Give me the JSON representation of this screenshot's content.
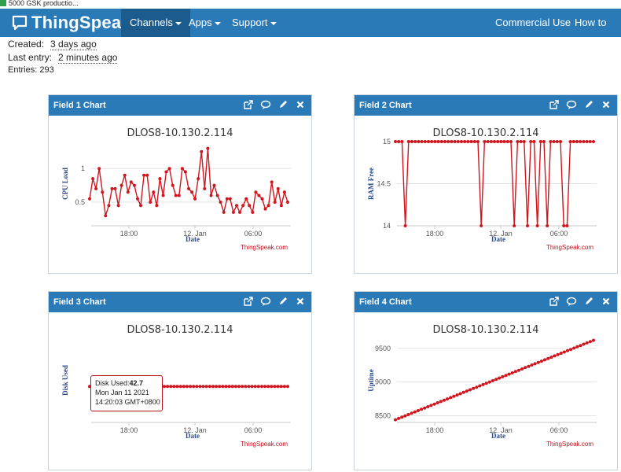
{
  "browser_tab": {
    "title": "5000 GSK productio..."
  },
  "navbar": {
    "brand": "ThingSpeak",
    "trademark": "™",
    "items": [
      {
        "label": "Channels"
      },
      {
        "label": "Apps"
      },
      {
        "label": "Support"
      }
    ],
    "right_items": [
      {
        "label": "Commercial Use"
      },
      {
        "label": "How to Buy"
      }
    ]
  },
  "channel_meta": {
    "created_label": "Created:",
    "created_value": "3 days ago",
    "last_entry_label": "Last entry:",
    "last_entry_value": "2 minutes ago",
    "entries_label": "Entries:",
    "entries_value": "293"
  },
  "colors": {
    "accent": "#2b7ab8",
    "series": "#d0161e",
    "credit": "#c0101a"
  },
  "panels": [
    {
      "title": "Field 1 Chart"
    },
    {
      "title": "Field 2 Chart"
    },
    {
      "title": "Field 3 Chart"
    },
    {
      "title": "Field 4 Chart"
    }
  ],
  "tooltip": {
    "label": "Disk Used:",
    "value": "42.7",
    "line2": "Mon Jan 11 2021",
    "line3": "14:20:03 GMT+0800"
  },
  "chart_data": [
    {
      "type": "line",
      "title": "DLOS8-10.130.2.114",
      "xlabel": "Date",
      "ylabel": "CPU Load",
      "x_ticks": [
        "18:00",
        "12. Jan",
        "06:00"
      ],
      "y_ticks": [
        0.5,
        1
      ],
      "ylim": [
        0.15,
        1.4
      ],
      "credit": "ThingSpeak.com",
      "values": [
        0.55,
        0.85,
        0.7,
        1.0,
        0.65,
        0.3,
        0.45,
        0.7,
        0.7,
        0.45,
        0.75,
        0.9,
        0.65,
        0.8,
        0.75,
        0.55,
        0.45,
        0.9,
        0.9,
        0.5,
        0.65,
        0.45,
        0.85,
        0.6,
        0.95,
        1.0,
        0.75,
        0.6,
        0.6,
        1.0,
        0.95,
        0.7,
        0.65,
        0.55,
        0.85,
        1.25,
        0.7,
        1.3,
        0.6,
        0.75,
        0.6,
        0.5,
        0.35,
        0.55,
        0.55,
        0.35,
        0.45,
        0.35,
        0.45,
        0.55,
        0.45,
        0.35,
        0.65,
        0.6,
        0.55,
        0.4,
        0.45,
        0.8,
        0.5,
        0.7,
        0.45,
        0.65,
        0.5
      ]
    },
    {
      "type": "line",
      "title": "DLOS8-10.130.2.114",
      "xlabel": "Date",
      "ylabel": "RAM Free",
      "x_ticks": [
        "18:00",
        "12. Jan",
        "06:00"
      ],
      "y_ticks": [
        14,
        14.5,
        15
      ],
      "ylim": [
        14,
        15
      ],
      "credit": "ThingSpeak.com",
      "values": [
        15,
        15,
        15,
        14,
        15,
        15,
        15,
        15,
        15,
        15,
        15,
        15,
        15,
        15,
        15,
        15,
        15,
        15,
        15,
        15,
        15,
        15,
        15,
        15,
        15,
        15,
        14,
        15,
        15,
        15,
        15,
        15,
        15,
        15,
        15,
        15,
        14,
        15,
        15,
        15,
        14,
        15,
        15,
        14,
        15,
        15,
        14,
        15,
        15,
        15,
        15,
        14,
        14,
        15,
        15,
        15,
        15,
        15,
        15,
        15,
        15
      ]
    },
    {
      "type": "line",
      "title": "DLOS8-10.130.2.114",
      "xlabel": "Date",
      "ylabel": "Disk Used",
      "x_ticks": [
        "18:00",
        "12. Jan",
        "06:00"
      ],
      "y_ticks": [],
      "ylim": [
        0,
        100
      ],
      "credit": "ThingSpeak.com",
      "constant_value": 42.7,
      "point_count": 62
    },
    {
      "type": "line",
      "title": "DLOS8-10.130.2.114",
      "xlabel": "Date",
      "ylabel": "Uptime",
      "x_ticks": [
        "18:00",
        "12. Jan",
        "06:00"
      ],
      "y_ticks": [
        8500,
        9000,
        9500
      ],
      "ylim": [
        8400,
        9650
      ],
      "credit": "ThingSpeak.com",
      "start_value": 8440,
      "end_value": 9620,
      "point_count": 62
    }
  ]
}
